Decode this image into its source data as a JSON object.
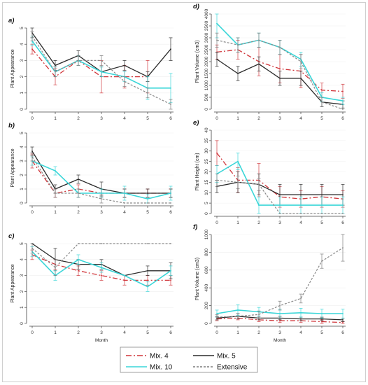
{
  "chart_data": [
    {
      "panel": "a)",
      "type": "line",
      "x": [
        0,
        1,
        2,
        3,
        4,
        5,
        6
      ],
      "xticks": [
        "0",
        "1",
        "2",
        "3",
        "4",
        "5",
        "6"
      ],
      "ylabel": "Plant Appearance",
      "xlabel": "",
      "ylim": [
        0,
        5
      ],
      "yticks": [
        "0",
        "1",
        "2",
        "3",
        "4",
        "5"
      ],
      "series": [
        {
          "name": "Mix. 4",
          "values": [
            3.7,
            2.0,
            3.0,
            2.0,
            2.0,
            2.0,
            null
          ],
          "err": [
            0.3,
            0.5,
            0.3,
            1.0,
            0.7,
            1.0,
            null
          ]
        },
        {
          "name": "Mix. 5",
          "values": [
            4.7,
            2.7,
            3.3,
            2.3,
            2.7,
            2.0,
            3.7
          ],
          "err": [
            0.3,
            0.3,
            0.3,
            0.3,
            0.3,
            0.3,
            0.7
          ]
        },
        {
          "name": "Mix. 10",
          "values": [
            4.2,
            2.3,
            3.0,
            2.3,
            2.0,
            1.3,
            1.3
          ],
          "err": [
            0.3,
            0.3,
            0.3,
            0.3,
            0.3,
            0.7,
            0.9
          ]
        },
        {
          "name": "Extensive",
          "values": [
            4.5,
            2.3,
            3.0,
            3.0,
            1.7,
            1.0,
            0.3
          ],
          "err": [
            0.3,
            0.3,
            0.3,
            0.3,
            0.3,
            0.3,
            0.3
          ]
        }
      ]
    },
    {
      "panel": "b)",
      "type": "line",
      "x": [
        0,
        1,
        2,
        3,
        4,
        5,
        6
      ],
      "xticks": [
        "0",
        "1",
        "2",
        "3",
        "4",
        "5",
        "6"
      ],
      "ylabel": "Plant Appearance",
      "xlabel": "",
      "ylim": [
        0,
        5
      ],
      "yticks": [
        "0",
        "1",
        "2",
        "3",
        "4",
        "5"
      ],
      "series": [
        {
          "name": "Mix. 4",
          "values": [
            3.0,
            0.7,
            1.0,
            0.7,
            0.7,
            0.7,
            0.7
          ],
          "err": [
            0.5,
            0.3,
            0.3,
            0.3,
            0.3,
            0.3,
            0.3
          ]
        },
        {
          "name": "Mix. 5",
          "values": [
            3.7,
            1.0,
            1.7,
            1.0,
            0.7,
            0.7,
            0.7
          ],
          "err": [
            0.3,
            0.3,
            0.3,
            0.5,
            0.3,
            0.3,
            0.3
          ]
        },
        {
          "name": "Mix. 10",
          "values": [
            3.0,
            2.3,
            0.7,
            0.7,
            0.7,
            0.3,
            0.7
          ],
          "err": [
            0.3,
            0.3,
            0.3,
            0.3,
            0.5,
            0.3,
            0.5
          ]
        },
        {
          "name": "Extensive",
          "values": [
            3.3,
            0.7,
            0.7,
            0.3,
            0.0,
            0.0,
            0.0
          ],
          "err": [
            0.3,
            0.3,
            0.3,
            0.3,
            0.0,
            0.0,
            0.0
          ]
        }
      ]
    },
    {
      "panel": "c)",
      "type": "line",
      "x": [
        0,
        1,
        2,
        3,
        4,
        5,
        6
      ],
      "xticks": [
        "0",
        "1",
        "2",
        "3",
        "4",
        "5",
        "6"
      ],
      "ylabel": "Plant Appearance",
      "xlabel": "Month",
      "ylim": [
        0,
        5
      ],
      "yticks": [
        "0",
        "1",
        "2",
        "3",
        "4",
        "5"
      ],
      "series": [
        {
          "name": "Mix. 4",
          "values": [
            4.3,
            3.7,
            3.3,
            3.0,
            2.7,
            2.7,
            2.7
          ],
          "err": [
            0.3,
            0.3,
            0.3,
            0.3,
            0.3,
            0.3,
            0.3
          ]
        },
        {
          "name": "Mix. 5",
          "values": [
            5.0,
            4.0,
            3.7,
            3.7,
            3.0,
            3.3,
            3.3
          ],
          "err": [
            0.0,
            0.7,
            0.3,
            0.3,
            0.0,
            0.3,
            0.5
          ]
        },
        {
          "name": "Mix. 10",
          "values": [
            4.5,
            3.0,
            4.0,
            3.5,
            3.0,
            2.3,
            3.3
          ],
          "err": [
            0.3,
            0.3,
            0.3,
            0.3,
            0.0,
            0.3,
            0.3
          ]
        },
        {
          "name": "Extensive",
          "values": [
            4.7,
            3.5,
            5.0,
            5.0,
            5.0,
            5.0,
            5.0
          ],
          "err": [
            0.3,
            0.5,
            0.0,
            0.0,
            0.0,
            0.0,
            0.0
          ]
        }
      ]
    },
    {
      "panel": "d)",
      "type": "line",
      "x": [
        0,
        1,
        2,
        3,
        4,
        5,
        6
      ],
      "xticks": [
        "0",
        "1",
        "2",
        "3",
        "4",
        "5",
        "6"
      ],
      "ylabel": "Plant Volume (cm3)",
      "xlabel": "",
      "ylim": [
        0,
        4000
      ],
      "yticks": [
        "0",
        "500",
        "1000",
        "1500",
        "2000",
        "2500",
        "3000",
        "3500",
        "4000"
      ],
      "series": [
        {
          "name": "Mix. 4",
          "values": [
            2400,
            2500,
            2000,
            1700,
            1600,
            800,
            750
          ],
          "err": [
            300,
            400,
            600,
            600,
            700,
            300,
            300
          ]
        },
        {
          "name": "Mix. 5",
          "values": [
            2100,
            1500,
            1900,
            1300,
            1300,
            300,
            200
          ],
          "err": [
            300,
            300,
            300,
            300,
            300,
            200,
            150
          ]
        },
        {
          "name": "Mix. 10",
          "values": [
            3600,
            2700,
            2900,
            2600,
            2100,
            500,
            350
          ],
          "err": [
            600,
            300,
            300,
            300,
            300,
            200,
            150
          ]
        },
        {
          "name": "Extensive",
          "values": [
            2900,
            2700,
            2900,
            2600,
            2000,
            300,
            0
          ],
          "err": [
            300,
            300,
            300,
            300,
            300,
            200,
            0
          ]
        }
      ]
    },
    {
      "panel": "e)",
      "type": "line",
      "x": [
        0,
        1,
        2,
        3,
        4,
        5,
        6
      ],
      "xticks": [
        "0",
        "1",
        "2",
        "3",
        "4",
        "5",
        "6"
      ],
      "ylabel": "Plant Height (cm)",
      "xlabel": "",
      "ylim": [
        0,
        40
      ],
      "yticks": [
        "0",
        "5",
        "10",
        "15",
        "20",
        "25",
        "30",
        "35",
        "40"
      ],
      "series": [
        {
          "name": "Mix. 4",
          "values": [
            29,
            16,
            16,
            8,
            7,
            8,
            7
          ],
          "err": [
            6,
            6,
            8,
            5,
            4,
            5,
            4
          ]
        },
        {
          "name": "Mix. 5",
          "values": [
            13,
            15,
            14,
            9,
            9,
            9,
            9
          ],
          "err": [
            3,
            5,
            5,
            5,
            5,
            5,
            5
          ]
        },
        {
          "name": "Mix. 10",
          "values": [
            19,
            25,
            4,
            4,
            4,
            4,
            4
          ],
          "err": [
            4,
            4,
            4,
            4,
            4,
            4,
            4
          ]
        },
        {
          "name": "Extensive",
          "values": [
            16,
            15,
            14,
            0,
            0,
            0,
            0
          ],
          "err": [
            3,
            3,
            3,
            0,
            0,
            0,
            0
          ]
        }
      ]
    },
    {
      "panel": "f)",
      "type": "line",
      "x": [
        0,
        1,
        2,
        3,
        4,
        5,
        6
      ],
      "xticks": [
        "0",
        "1",
        "2",
        "3",
        "4",
        "5",
        "6"
      ],
      "ylabel": "Plant Volume (cm3)",
      "xlabel": "Month",
      "ylim": [
        0,
        1000
      ],
      "yticks": [
        "0",
        "200",
        "400",
        "600",
        "800",
        "1000"
      ],
      "series": [
        {
          "name": "Mix. 4",
          "values": [
            50,
            60,
            40,
            30,
            30,
            20,
            10
          ],
          "err": [
            20,
            20,
            20,
            20,
            20,
            20,
            10
          ]
        },
        {
          "name": "Mix. 5",
          "values": [
            60,
            80,
            60,
            60,
            50,
            50,
            40
          ],
          "err": [
            20,
            30,
            20,
            20,
            20,
            20,
            20
          ]
        },
        {
          "name": "Mix. 10",
          "values": [
            110,
            150,
            130,
            110,
            120,
            110,
            110
          ],
          "err": [
            40,
            60,
            50,
            50,
            50,
            50,
            50
          ]
        },
        {
          "name": "Extensive",
          "values": [
            70,
            80,
            100,
            200,
            280,
            700,
            850
          ],
          "err": [
            30,
            30,
            40,
            50,
            50,
            80,
            150
          ]
        }
      ]
    }
  ],
  "legend": {
    "entries": [
      {
        "label": "Mix. 4",
        "color": "#d0353a",
        "dash": "8,3,2,3"
      },
      {
        "label": "Mix. 5",
        "color": "#2b2b2b",
        "dash": ""
      },
      {
        "label": "Mix. 10",
        "color": "#3ad6d8",
        "dash": ""
      },
      {
        "label": "Extensive",
        "color": "#7d7d7d",
        "dash": "3,2"
      }
    ]
  },
  "colors": {
    "Mix. 4": "#d0353a",
    "Mix. 5": "#2b2b2b",
    "Mix. 10": "#3ad6d8",
    "Extensive": "#8a8a8a"
  }
}
